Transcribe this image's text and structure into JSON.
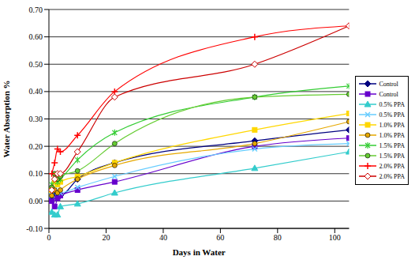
{
  "chart_data": {
    "type": "line",
    "x_label": "Days in Water",
    "y_label": "Water Absorption %",
    "x": [
      1,
      2,
      3,
      4,
      10,
      23,
      72,
      105
    ],
    "xlim": [
      0,
      105
    ],
    "xticks": [
      0,
      20,
      40,
      60,
      80,
      100
    ],
    "ylim": [
      -0.1,
      0.7
    ],
    "yticks": [
      {
        "value": -0.1,
        "label": "-0.10"
      },
      {
        "value": 0,
        "label": "0.00"
      },
      {
        "value": 0.1,
        "label": "0.10"
      },
      {
        "value": 0.2,
        "label": "0.20"
      },
      {
        "value": 0.3,
        "label": "0.30"
      },
      {
        "value": 0.4,
        "label": "0.40"
      },
      {
        "value": 0.5,
        "label": "0.50"
      },
      {
        "value": 0.6,
        "label": "0.60"
      },
      {
        "value": 0.7,
        "label": "0.70"
      }
    ],
    "grid": true,
    "legend": "right",
    "series": [
      {
        "name": "Control",
        "color": "#000080",
        "marker": "diamond",
        "values": [
          0.01,
          0.03,
          0.02,
          0.02,
          0.08,
          0.14,
          0.22,
          0.26
        ]
      },
      {
        "name": "Control",
        "color": "#6600cc",
        "marker": "square",
        "values": [
          0.0,
          -0.02,
          0.01,
          0.02,
          0.04,
          0.07,
          0.2,
          0.23
        ]
      },
      {
        "name": "0.5% PPA",
        "color": "#33cccc",
        "marker": "triangle",
        "values": [
          -0.04,
          -0.05,
          -0.05,
          -0.02,
          -0.01,
          0.03,
          0.12,
          0.18
        ]
      },
      {
        "name": "0.5% PPA",
        "color": "#66ccff",
        "marker": "x",
        "values": [
          0.02,
          0.04,
          0.03,
          0.03,
          0.05,
          0.09,
          0.19,
          0.21
        ]
      },
      {
        "name": "1.0% PPA",
        "color": "#ffd700",
        "marker": "square",
        "values": [
          0.04,
          0.07,
          0.06,
          0.07,
          0.09,
          0.14,
          0.26,
          0.32
        ]
      },
      {
        "name": "1.0% PPA",
        "color": "#e6a800",
        "marker": "circle",
        "values": [
          0.02,
          0.04,
          0.03,
          0.04,
          0.08,
          0.13,
          0.21,
          0.29
        ]
      },
      {
        "name": "1.5% PPA",
        "color": "#33cc33",
        "marker": "star",
        "values": [
          0.06,
          0.09,
          0.07,
          0.08,
          0.15,
          0.25,
          0.38,
          0.42
        ]
      },
      {
        "name": "1.5% PPA",
        "color": "#66cc33",
        "marker": "circle",
        "values": [
          0.05,
          0.1,
          0.08,
          0.09,
          0.11,
          0.21,
          0.38,
          0.39
        ]
      },
      {
        "name": "2.0% PPA",
        "color": "#ff0000",
        "marker": "plus",
        "values": [
          0.1,
          0.14,
          0.19,
          0.18,
          0.24,
          0.4,
          0.6,
          0.64
        ]
      },
      {
        "name": "2.0% PPA",
        "color": "#cc0000",
        "marker": "open_diamond",
        "values": [
          0.04,
          0.08,
          0.1,
          0.1,
          0.18,
          0.38,
          0.5,
          0.64
        ]
      }
    ]
  }
}
